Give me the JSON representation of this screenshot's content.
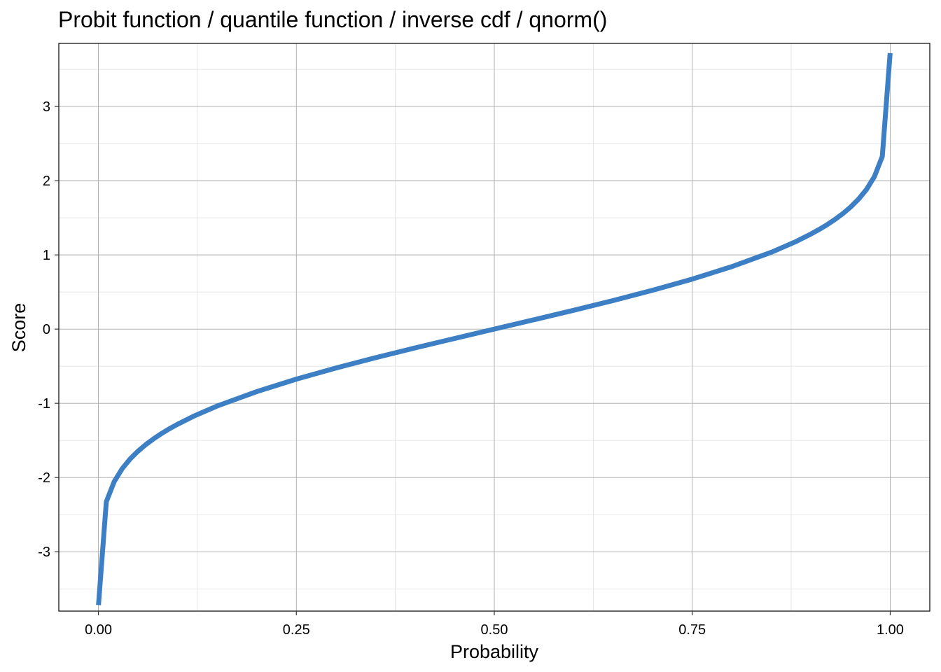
{
  "chart_data": {
    "type": "line",
    "title": "Probit function / quantile function / inverse cdf / qnorm()",
    "xlabel": "Probability",
    "ylabel": "Score",
    "xlim": [
      -0.05,
      1.05
    ],
    "ylim": [
      -3.8,
      3.85
    ],
    "x_ticks": [
      0,
      0.25,
      0.5,
      0.75,
      1
    ],
    "x_tick_labels": [
      "0.00",
      "0.25",
      "0.50",
      "0.75",
      "1.00"
    ],
    "y_ticks": [
      -3,
      -2,
      -1,
      0,
      1,
      2,
      3
    ],
    "y_tick_labels": [
      "-3",
      "-2",
      "-1",
      "0",
      "1",
      "2",
      "3"
    ],
    "x_minor_ticks": [
      0.125,
      0.375,
      0.625,
      0.875
    ],
    "y_minor_ticks": [
      -3.5,
      -2.5,
      -1.5,
      -0.5,
      0.5,
      1.5,
      2.5,
      3.5
    ],
    "grid": true,
    "series": [
      {
        "color": "#3d7fc4",
        "x": [
          0.0001,
          0.01,
          0.02,
          0.03,
          0.04,
          0.05,
          0.06,
          0.07,
          0.08,
          0.09,
          0.1,
          0.12,
          0.15,
          0.2,
          0.25,
          0.3,
          0.35,
          0.4,
          0.45,
          0.5,
          0.55,
          0.6,
          0.65,
          0.7,
          0.75,
          0.8,
          0.85,
          0.88,
          0.9,
          0.91,
          0.92,
          0.93,
          0.94,
          0.95,
          0.96,
          0.97,
          0.98,
          0.99,
          0.9999
        ],
        "y": [
          -3.719,
          -2.326,
          -2.054,
          -1.881,
          -1.751,
          -1.645,
          -1.555,
          -1.476,
          -1.405,
          -1.341,
          -1.282,
          -1.175,
          -1.036,
          -0.842,
          -0.674,
          -0.524,
          -0.385,
          -0.253,
          -0.126,
          0,
          0.126,
          0.253,
          0.385,
          0.524,
          0.674,
          0.842,
          1.036,
          1.175,
          1.282,
          1.341,
          1.405,
          1.476,
          1.555,
          1.645,
          1.751,
          1.881,
          2.054,
          2.326,
          3.719
        ]
      }
    ]
  }
}
